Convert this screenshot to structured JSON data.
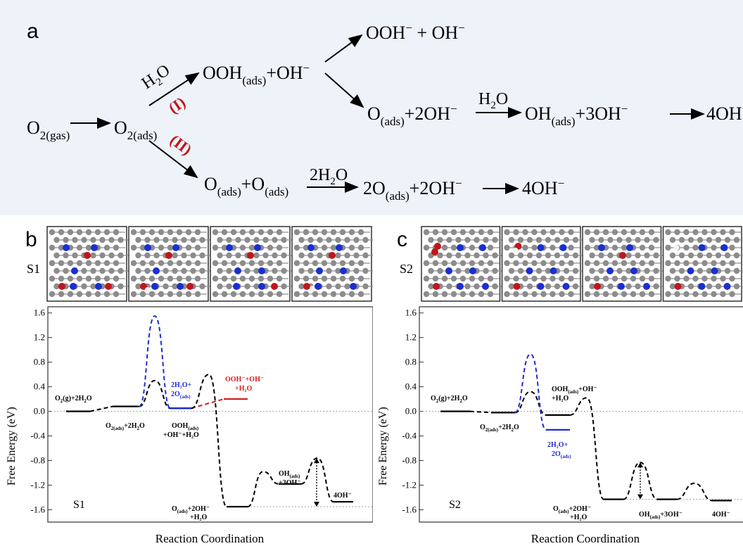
{
  "panel_a": {
    "label": "a",
    "o2_gas": {
      "base": "O",
      "sub": "2(gas)"
    },
    "o2_ads": {
      "base": "O",
      "sub": "2(ads)"
    },
    "path_I": "(I)",
    "path_II": "(II)",
    "h2o": {
      "base": "H",
      "sub": "2",
      "tail": "O"
    },
    "ooh_ads": {
      "base": "OOH",
      "sub": "(ads)",
      "tail": "+OH"
    },
    "ooh_free": {
      "text": "OOH",
      "sup": "−",
      "tail": " + OH"
    },
    "o_ads_2oh": {
      "base": "O",
      "sub": "(ads)",
      "tail": "+2OH"
    },
    "oh_ads_3oh": {
      "base": "OH",
      "sub": "(ads)",
      "tail": "+3OH"
    },
    "four_oh": {
      "text": "4OH"
    },
    "o_ads_o_ads": {
      "base": "O",
      "sub": "(ads)",
      "mid": "+O",
      "sub2": "(ads)"
    },
    "two_h2o": {
      "base": "2H",
      "sub": "2",
      "tail": "O"
    },
    "two_o_ads": {
      "base": "2O",
      "sub": "(ads)",
      "tail": "+2OH"
    },
    "minus": "−",
    "colors": {
      "arrow": "#000000",
      "path_label": "#c0161b"
    }
  },
  "panel_b": {
    "label": "b",
    "structure_label": "S1",
    "plot_label": "S1"
  },
  "panel_c": {
    "label": "c",
    "structure_label": "S2",
    "plot_label": "S2"
  },
  "chart_data": [
    {
      "type": "line",
      "title": "",
      "xlabel": "Reaction Coordination",
      "ylabel": "Free Energy (eV)",
      "ylim": [
        -1.8,
        1.7
      ],
      "yticks": [
        1.6,
        1.2,
        0.8,
        0.4,
        0.0,
        -0.4,
        -0.8,
        -1.2,
        -1.6
      ],
      "grid": false,
      "series": [
        {
          "name": "",
          "color": "#000000",
          "style": "dashed",
          "levels": [
            0.0,
            0.08,
            0.05,
            -1.55,
            -1.18,
            -1.47
          ],
          "barriers": [
            0.5,
            0.6,
            -0.98,
            -0.76
          ]
        },
        {
          "name": "",
          "color": "#1e2bd6",
          "style": "dashed",
          "levels": [
            0.08,
            0.05
          ],
          "barriers": [
            1.55
          ]
        },
        {
          "name": "",
          "color": "#d2201f",
          "style": "dashed",
          "levels": [
            0.05,
            0.2
          ],
          "barriers": []
        }
      ],
      "state_labels": [
        {
          "text": "O2(g)+2H2O",
          "energy": 0.0
        },
        {
          "text": "O2(ads)+2H2O",
          "energy": 0.08
        },
        {
          "text": "OOH(ads)+OH−+H2O",
          "energy": 0.05
        },
        {
          "text": "2H2O+2O(ads)",
          "energy": 0.05
        },
        {
          "text": "OOH−+OH−+H2O",
          "energy": 0.2
        },
        {
          "text": "O(ads)+2OH−+H2O",
          "energy": -1.55
        },
        {
          "text": "OH(ads)+3OH−",
          "energy": -1.18
        },
        {
          "text": "4OH−",
          "energy": -1.47
        }
      ]
    },
    {
      "type": "line",
      "title": "",
      "xlabel": "Reaction Coordination",
      "ylabel": "Free Energy (eV)",
      "ylim": [
        -1.8,
        1.7
      ],
      "yticks": [
        1.6,
        1.2,
        0.8,
        0.4,
        0.0,
        -0.4,
        -0.8,
        -1.2,
        -1.6
      ],
      "grid": false,
      "series": [
        {
          "name": "",
          "color": "#000000",
          "style": "dashed",
          "levels": [
            0.0,
            -0.02,
            -0.06,
            -1.43,
            -1.43,
            -1.45
          ],
          "barriers": [
            0.32,
            0.22,
            -0.83,
            -1.17
          ]
        },
        {
          "name": "",
          "color": "#1e2bd6",
          "style": "dashed",
          "levels": [
            -0.02,
            -0.3
          ],
          "barriers": [
            0.93
          ]
        }
      ],
      "state_labels": [
        {
          "text": "O2(g)+2H2O",
          "energy": 0.0
        },
        {
          "text": "O2(ads)+2H2O",
          "energy": -0.02
        },
        {
          "text": "OOH(ads)+OH−+H2O",
          "energy": -0.06
        },
        {
          "text": "2H2O+2O(ads)",
          "energy": -0.3
        },
        {
          "text": "O(ads)+2OH−+H2O",
          "energy": -1.43
        },
        {
          "text": "OH(ads)+3OH−",
          "energy": -1.43
        },
        {
          "text": "4OH−",
          "energy": -1.45
        }
      ]
    }
  ],
  "plot_text": {
    "o2g": {
      "a": "O",
      "s": "2",
      "b": "(g)+2H",
      "s2": "2",
      "c": "O"
    },
    "o2ads": {
      "a": "O",
      "s": "2(ads)",
      "b": "+2H",
      "s2": "2",
      "c": "O"
    },
    "oohads_b": {
      "a": "OOH",
      "s": "(ads)"
    },
    "oohads_b2": "+OH⁻+H₂O",
    "blue_b1": "2H₂O+",
    "blue_b2": {
      "a": "2O",
      "s": "(ads)"
    },
    "red_b1": "OOH⁻+OH⁻",
    "red_b2": "+H₂O",
    "oads_b1": {
      "a": "O",
      "s": "(ads)",
      "b": "+2OH⁻"
    },
    "oads_b2": "+H₂O",
    "ohads_b1": {
      "a": "OH",
      "s": "(ads)"
    },
    "ohads_b2": "+3OH⁻",
    "fouroh": "4OH⁻",
    "oohads_c1": {
      "a": "OOH",
      "s": "(ads)",
      "b": "+OH⁻"
    },
    "oohads_c2": "+H₂O",
    "blue_c1": "2H₂O+",
    "blue_c2": {
      "a": "2O",
      "s": "(ads)"
    },
    "oads_c1": {
      "a": "O",
      "s": "(ads)",
      "b": "+2OH⁻"
    },
    "oads_c2": "+H₂O",
    "ohads_c": {
      "a": "OH",
      "s": "(ads)",
      "b": "+3OH⁻"
    }
  }
}
